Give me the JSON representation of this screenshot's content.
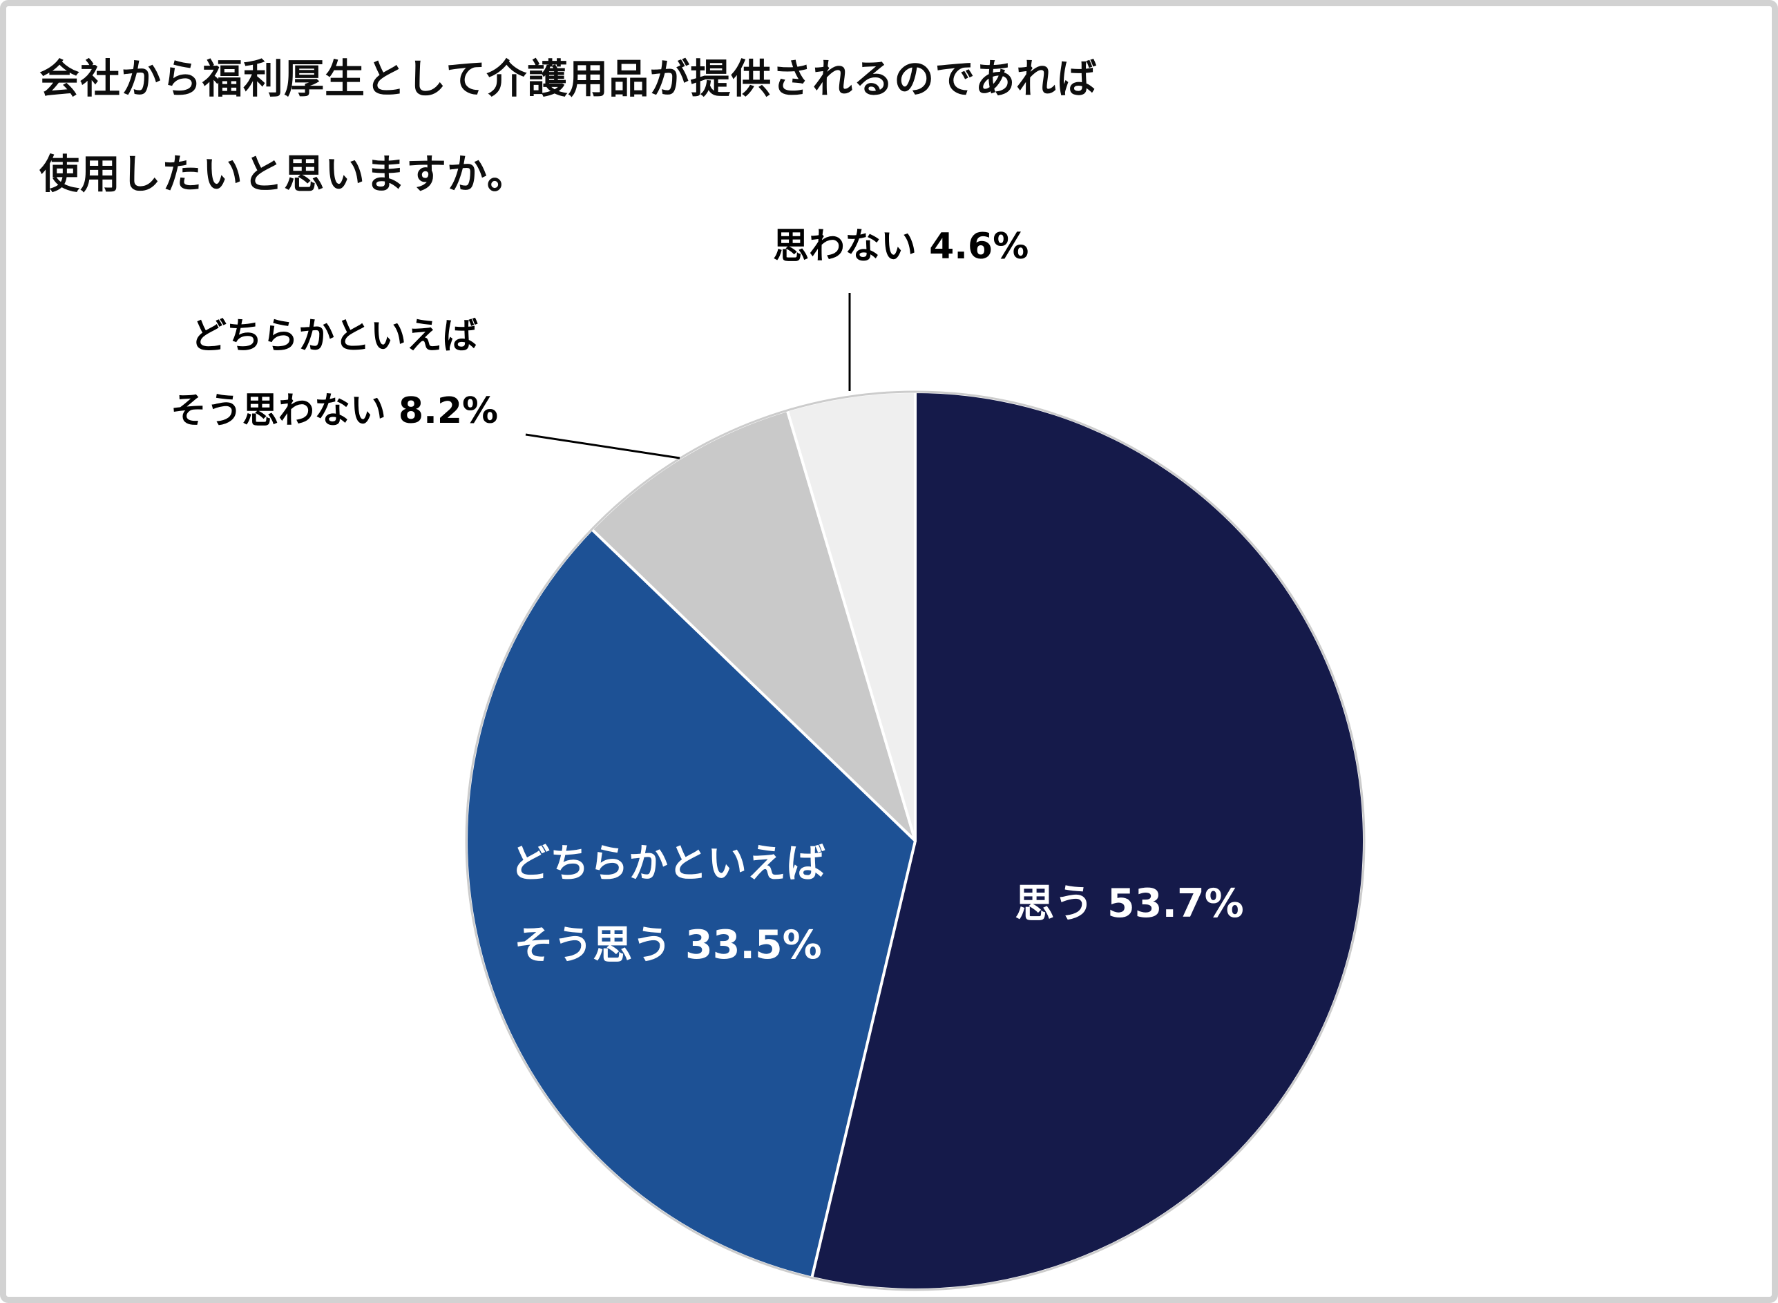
{
  "title": {
    "line1": "会社から福利厚生として介護用品が提供されるのであれば",
    "line2": "使用したいと思いますか。"
  },
  "labels": {
    "omowanai": "思わない 4.6%",
    "dochira_omowanai_line1": "どちらかといえば",
    "dochira_omowanai_line2": "そう思わない 8.2%",
    "omou": "思う 53.7%",
    "dochira_omou_line1": "どちらかといえば",
    "dochira_omou_line2": "そう思う 33.5%"
  },
  "chart_data": {
    "type": "pie",
    "title": "会社から福利厚生として介護用品が提供されるのであれば使用したいと思いますか。",
    "start_angle_deg": 0,
    "direction": "clockwise",
    "legend": "none",
    "slices": [
      {
        "label": "思う",
        "value": 53.7,
        "color": "#151A4A",
        "label_position": "inside",
        "text_color": "#ffffff"
      },
      {
        "label": "どちらかといえばそう思う",
        "value": 33.5,
        "color": "#1D5195",
        "label_position": "inside",
        "text_color": "#ffffff"
      },
      {
        "label": "どちらかといえばそう思わない",
        "value": 8.2,
        "color": "#C9C9C9",
        "label_position": "outside",
        "text_color": "#000000"
      },
      {
        "label": "思わない",
        "value": 4.6,
        "color": "#EFEFEF",
        "label_position": "outside",
        "text_color": "#000000"
      }
    ],
    "slice_border_color": "#ffffff",
    "outer_ring_color": "#cccccc"
  }
}
